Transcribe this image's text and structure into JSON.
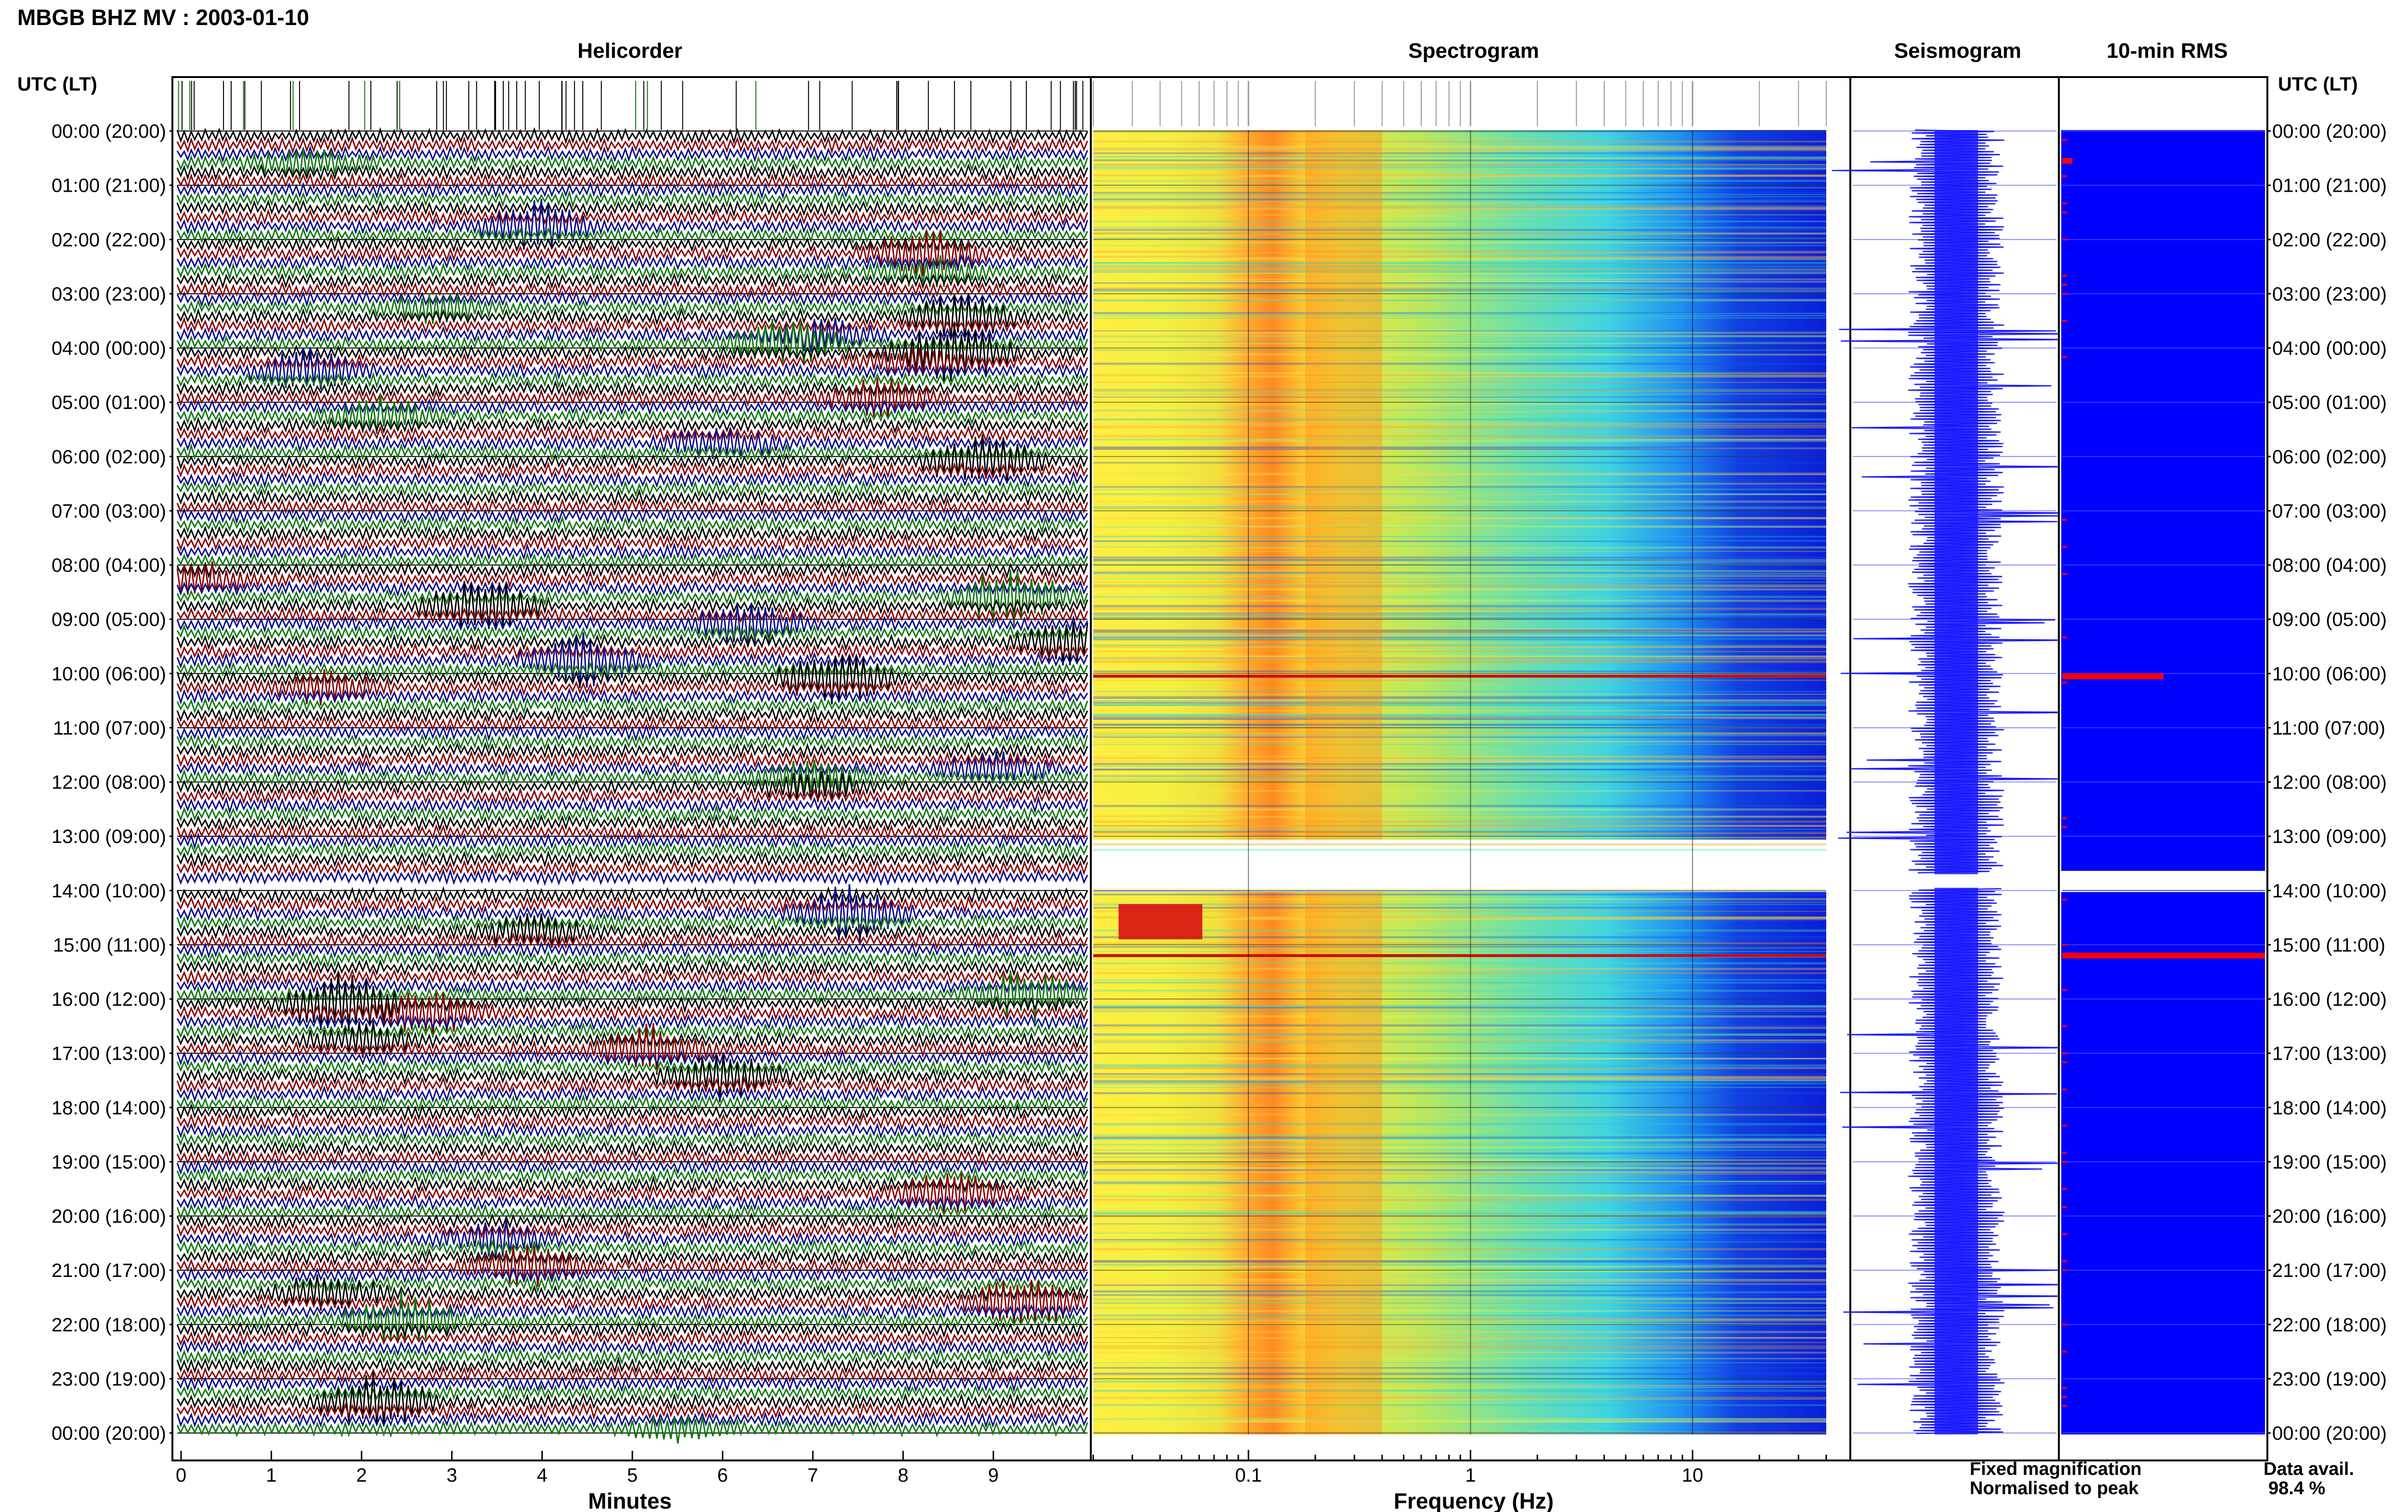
{
  "title": "MBGB BHZ MV : 2003-01-10",
  "panels": {
    "helicorder": "Helicorder",
    "spectrogram": "Spectrogram",
    "seismogram": "Seismogram",
    "rms": "10-min RMS"
  },
  "time_axis_label": "UTC (LT)",
  "time_labels": [
    "00:00 (20:00)",
    "01:00 (21:00)",
    "02:00 (22:00)",
    "03:00 (23:00)",
    "04:00 (00:00)",
    "05:00 (01:00)",
    "06:00 (02:00)",
    "07:00 (03:00)",
    "08:00 (04:00)",
    "09:00 (05:00)",
    "10:00 (06:00)",
    "11:00 (07:00)",
    "12:00 (08:00)",
    "13:00 (09:00)",
    "14:00 (10:00)",
    "15:00 (11:00)",
    "16:00 (12:00)",
    "17:00 (13:00)",
    "18:00 (14:00)",
    "19:00 (15:00)",
    "20:00 (16:00)",
    "21:00 (17:00)",
    "22:00 (18:00)",
    "23:00 (19:00)",
    "00:00 (20:00)"
  ],
  "x_axes": {
    "helicorder": {
      "label": "Minutes",
      "ticks": [
        "0",
        "1",
        "2",
        "3",
        "4",
        "5",
        "6",
        "7",
        "8",
        "9"
      ]
    },
    "spectrogram": {
      "label": "Frequency (Hz)",
      "ticks": [
        "0.1",
        "1",
        "10"
      ]
    }
  },
  "legend": {
    "fixed": "Fixed magnification",
    "normalised": "Normalised to peak",
    "fixed_color": "#1a1aff",
    "normalised_color": "#ff1a1a"
  },
  "availability": {
    "label": "Data avail.",
    "value": "98.4 %"
  },
  "chart_data": [
    {
      "type": "heatmap",
      "name": "Helicorder",
      "xlabel": "Minutes",
      "xlim": [
        0,
        10
      ],
      "ylabel": "UTC (LT)",
      "ylim": [
        0,
        24
      ],
      "trace_colors": [
        "#000000",
        "#8b0000",
        "#0a0a8c",
        "#0f7a0f"
      ],
      "gaps_hours": [
        [
          13.7,
          13.95
        ]
      ]
    },
    {
      "type": "heatmap",
      "name": "Spectrogram",
      "xlabel": "Frequency (Hz)",
      "xscale": "log",
      "xlim": [
        0.02,
        40
      ],
      "ylim": [
        0,
        24
      ],
      "peak_band_hz": [
        0.18,
        0.4
      ],
      "colormap": [
        "#ffff40",
        "#ff9a20",
        "#e4e640",
        "#40e0d0",
        "#0a1fd8"
      ],
      "gaps_hours": [
        [
          13.55,
          13.65
        ],
        [
          13.7,
          13.95
        ]
      ]
    },
    {
      "type": "line",
      "name": "Seismogram",
      "color": "#1a1aff",
      "gaps_hours": [
        [
          13.7,
          13.95
        ]
      ]
    },
    {
      "type": "bar",
      "name": "10-min RMS",
      "color": "#0000ff",
      "peaks": [
        {
          "hour": 0.55,
          "value": 0.05
        },
        {
          "hour": 10.05,
          "value": 0.5
        },
        {
          "hour": 15.2,
          "value": 1.0
        }
      ],
      "gaps_hours": [
        [
          13.7,
          13.95
        ]
      ]
    }
  ]
}
